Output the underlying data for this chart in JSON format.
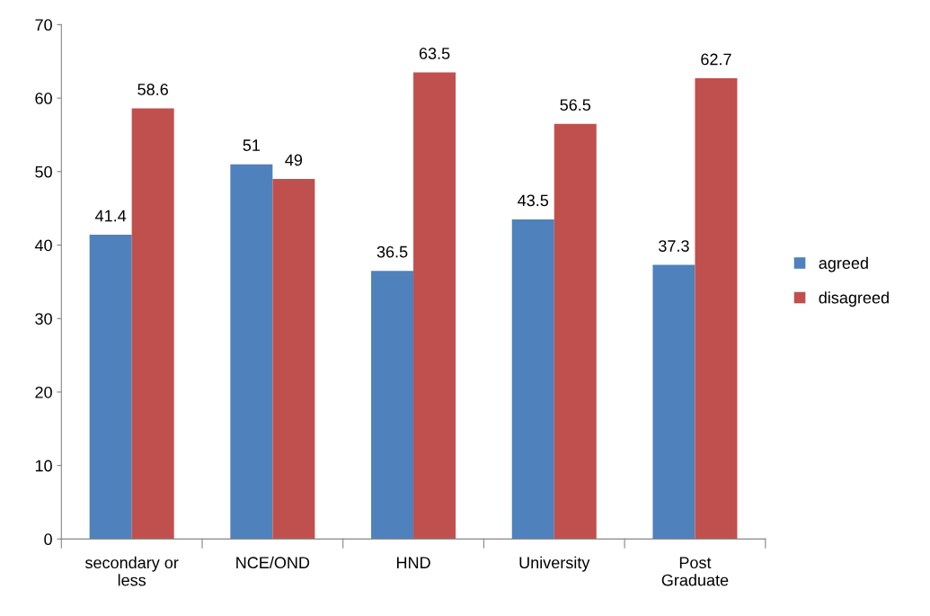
{
  "chart_data": {
    "type": "bar",
    "categories": [
      "secondary or\nless",
      "NCE/OND",
      "HND",
      "University",
      "Post\nGraduate"
    ],
    "series": [
      {
        "name": "agreed",
        "color": "#4f81bd",
        "values": [
          41.4,
          51,
          36.5,
          43.5,
          37.3
        ]
      },
      {
        "name": "disagreed",
        "color": "#c0504d",
        "values": [
          58.6,
          49,
          63.5,
          56.5,
          62.7
        ]
      }
    ],
    "ylim": [
      0,
      70
    ],
    "yticks": [
      0,
      10,
      20,
      30,
      40,
      50,
      60,
      70
    ],
    "data_labels": true,
    "grid": false,
    "legend": "right"
  }
}
